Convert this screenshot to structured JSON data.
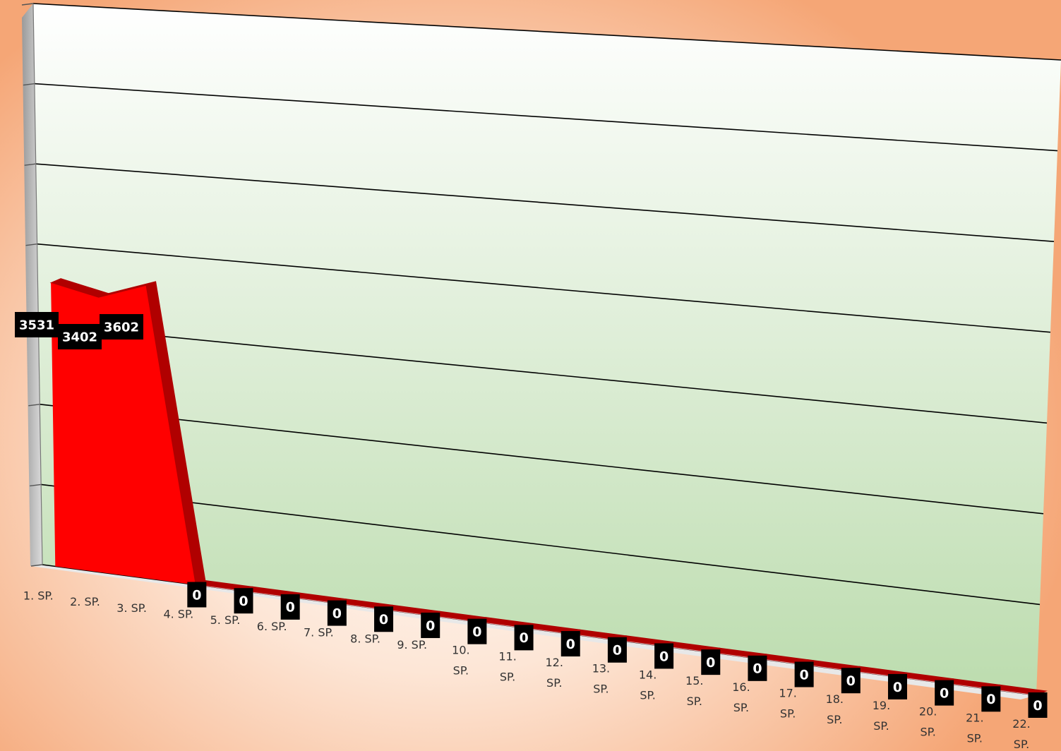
{
  "chart_data": {
    "type": "area",
    "subtype": "3d-area",
    "categories": [
      "1. SP.",
      "2. SP.",
      "3. SP.",
      "4. SP.",
      "5. SP.",
      "6. SP.",
      "7. SP.",
      "8. SP.",
      "9. SP.",
      "10. SP.",
      "11. SP.",
      "12. SP.",
      "13. SP.",
      "14. SP.",
      "15. SP.",
      "16. SP.",
      "17. SP.",
      "18. SP.",
      "19. SP.",
      "20. SP.",
      "21. SP.",
      "22. SP."
    ],
    "values": [
      3531,
      3402,
      3602,
      0,
      0,
      0,
      0,
      0,
      0,
      0,
      0,
      0,
      0,
      0,
      0,
      0,
      0,
      0,
      0,
      0,
      0,
      0
    ],
    "ylim": [
      0,
      7000
    ],
    "ytick_step": 1000,
    "grid": true,
    "legend": "none",
    "title": "",
    "xlabel": "",
    "ylabel": "",
    "colors": {
      "area_front": "#ff0000",
      "area_side": "#b00000",
      "label_bg": "#000000",
      "label_text": "#ffffff",
      "plot_wall_top": "#ffffff",
      "plot_wall_bottom": "#bcdcae",
      "grid": "#000000"
    }
  }
}
